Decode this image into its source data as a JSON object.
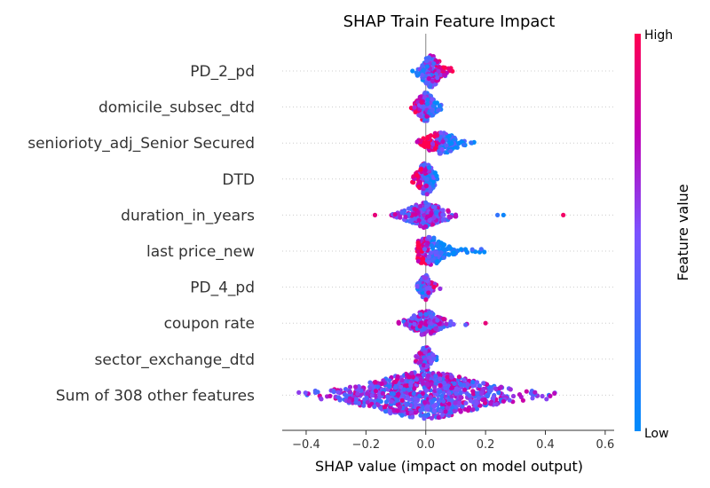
{
  "chart_data": {
    "type": "scatter",
    "title": "SHAP Train Feature Impact",
    "xlabel": "SHAP value (impact on model output)",
    "ylabel": "",
    "xlim": [
      -0.48,
      0.63
    ],
    "xticks": [
      -0.4,
      -0.2,
      0.0,
      0.2,
      0.4,
      0.6
    ],
    "xtick_labels": [
      "−0.4",
      "−0.2",
      "0.0",
      "0.2",
      "0.4",
      "0.6"
    ],
    "grid": "dotted horizontal row lines",
    "colorbar": {
      "label": "Feature value",
      "high_label": "High",
      "low_label": "Low",
      "low_color": "#008bfb",
      "high_color": "#ff0051"
    },
    "features": [
      {
        "name": "PD_2_pd",
        "min": -0.05,
        "max": 0.1,
        "center": 0.02,
        "spread": 0.025,
        "n": 180,
        "rh": 0.45,
        "bias": 0.6,
        "outliers": []
      },
      {
        "name": "domicile_subsec_dtd",
        "min": -0.05,
        "max": 0.06,
        "center": 0.0,
        "spread": 0.022,
        "n": 160,
        "rh": 0.4,
        "bias": -0.8,
        "outliers": []
      },
      {
        "name": "seniorioty_adj_Senior Secured",
        "min": -0.03,
        "max": 0.17,
        "center": 0.05,
        "spread": 0.04,
        "n": 180,
        "rh": 0.3,
        "bias": -2.0,
        "outliers": []
      },
      {
        "name": "DTD",
        "min": -0.05,
        "max": 0.04,
        "center": 0.0,
        "spread": 0.02,
        "n": 170,
        "rh": 0.45,
        "bias": -0.8,
        "outliers": []
      },
      {
        "name": "duration_in_years",
        "min": -0.13,
        "max": 0.26,
        "center": 0.0,
        "spread": 0.045,
        "n": 240,
        "rh": 0.35,
        "bias": 0.0,
        "outliers": [
          [
            -0.17,
            0.9
          ],
          [
            0.46,
            0.95
          ],
          [
            0.26,
            0.05
          ],
          [
            0.24,
            0.2
          ]
        ]
      },
      {
        "name": "last price_new",
        "min": -0.03,
        "max": 0.2,
        "center": 0.01,
        "spread": 0.04,
        "n": 200,
        "rh": 0.4,
        "bias": -1.8,
        "outliers": []
      },
      {
        "name": "PD_4_pd",
        "min": -0.03,
        "max": 0.05,
        "center": 0.0,
        "spread": 0.015,
        "n": 120,
        "rh": 0.35,
        "bias": 0.5,
        "outliers": []
      },
      {
        "name": "coupon rate",
        "min": -0.11,
        "max": 0.15,
        "center": 0.0,
        "spread": 0.035,
        "n": 200,
        "rh": 0.35,
        "bias": 0.0,
        "outliers": [
          [
            0.2,
            0.9
          ]
        ]
      },
      {
        "name": "sector_exchange_dtd",
        "min": -0.04,
        "max": 0.04,
        "center": 0.0,
        "spread": 0.015,
        "n": 100,
        "rh": 0.35,
        "bias": -0.3,
        "outliers": []
      },
      {
        "name": "Sum of 308 other features",
        "min": -0.43,
        "max": 0.57,
        "center": 0.0,
        "spread": 0.15,
        "n": 900,
        "rh": 0.65,
        "bias": 0.0,
        "outliers": []
      }
    ]
  }
}
